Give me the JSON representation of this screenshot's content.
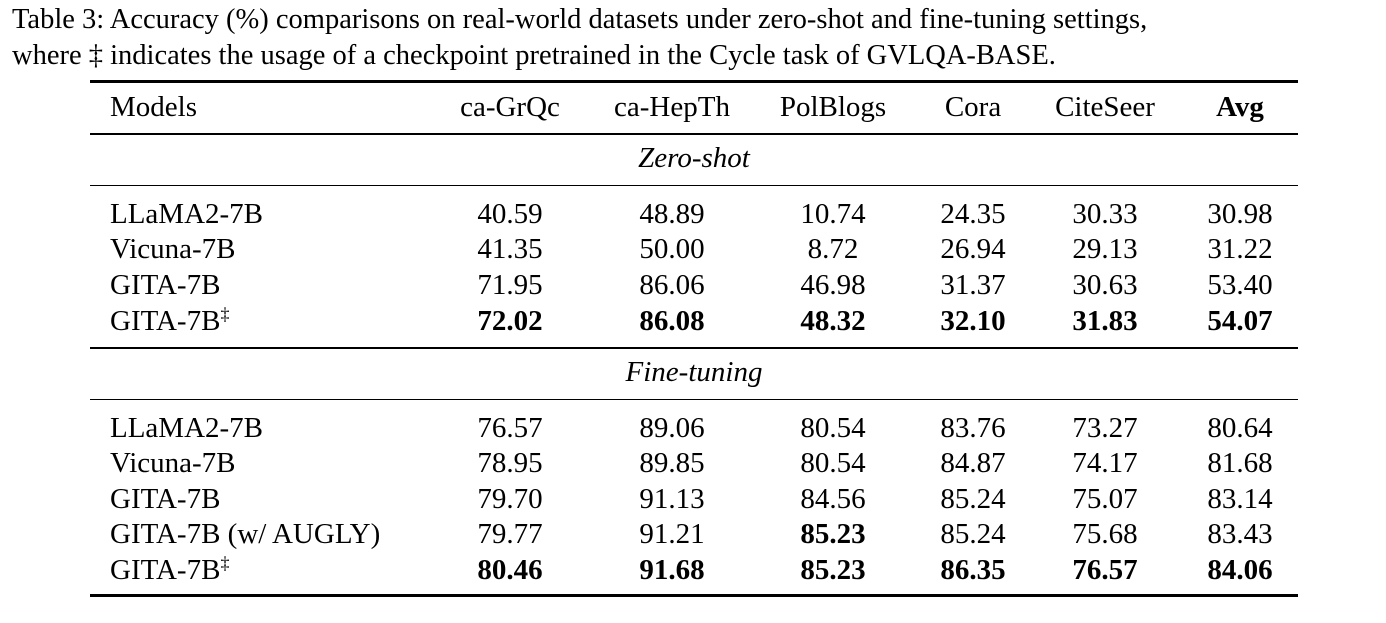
{
  "caption": {
    "line1": "Table 3: Accuracy (%) comparisons on real-world datasets under zero-shot and fine-tuning settings,",
    "line2": "where ‡ indicates the usage of a checkpoint pretrained in the Cycle task of GVLQA-BASE."
  },
  "table": {
    "headers": [
      "Models",
      "ca-GrQc",
      "ca-HepTh",
      "PolBlogs",
      "Cora",
      "CiteSeer",
      "Avg"
    ],
    "sections": [
      {
        "title": "Zero-shot",
        "rows": [
          {
            "model": "LLaMA2-7B",
            "sup": "",
            "values": [
              "40.59",
              "48.89",
              "10.74",
              "24.35",
              "30.33",
              "30.98"
            ],
            "bold": [
              false,
              false,
              false,
              false,
              false,
              false
            ]
          },
          {
            "model": "Vicuna-7B",
            "sup": "",
            "values": [
              "41.35",
              "50.00",
              "8.72",
              "26.94",
              "29.13",
              "31.22"
            ],
            "bold": [
              false,
              false,
              false,
              false,
              false,
              false
            ]
          },
          {
            "model": "GITA-7B",
            "sup": "",
            "values": [
              "71.95",
              "86.06",
              "46.98",
              "31.37",
              "30.63",
              "53.40"
            ],
            "bold": [
              false,
              false,
              false,
              false,
              false,
              false
            ]
          },
          {
            "model": "GITA-7B",
            "sup": "‡",
            "values": [
              "72.02",
              "86.08",
              "48.32",
              "32.10",
              "31.83",
              "54.07"
            ],
            "bold": [
              true,
              true,
              true,
              true,
              true,
              true
            ]
          }
        ]
      },
      {
        "title": "Fine-tuning",
        "rows": [
          {
            "model": "LLaMA2-7B",
            "sup": "",
            "values": [
              "76.57",
              "89.06",
              "80.54",
              "83.76",
              "73.27",
              "80.64"
            ],
            "bold": [
              false,
              false,
              false,
              false,
              false,
              false
            ]
          },
          {
            "model": "Vicuna-7B",
            "sup": "",
            "values": [
              "78.95",
              "89.85",
              "80.54",
              "84.87",
              "74.17",
              "81.68"
            ],
            "bold": [
              false,
              false,
              false,
              false,
              false,
              false
            ]
          },
          {
            "model": "GITA-7B",
            "sup": "",
            "values": [
              "79.70",
              "91.13",
              "84.56",
              "85.24",
              "75.07",
              "83.14"
            ],
            "bold": [
              false,
              false,
              false,
              false,
              false,
              false
            ]
          },
          {
            "model": "GITA-7B (w/ AUGLY)",
            "sup": "",
            "values": [
              "79.77",
              "91.21",
              "85.23",
              "85.24",
              "75.68",
              "83.43"
            ],
            "bold": [
              false,
              false,
              true,
              false,
              false,
              false
            ]
          },
          {
            "model": "GITA-7B",
            "sup": "‡",
            "values": [
              "80.46",
              "91.68",
              "85.23",
              "86.35",
              "76.57",
              "84.06"
            ],
            "bold": [
              true,
              true,
              true,
              true,
              true,
              true
            ]
          }
        ]
      }
    ]
  }
}
